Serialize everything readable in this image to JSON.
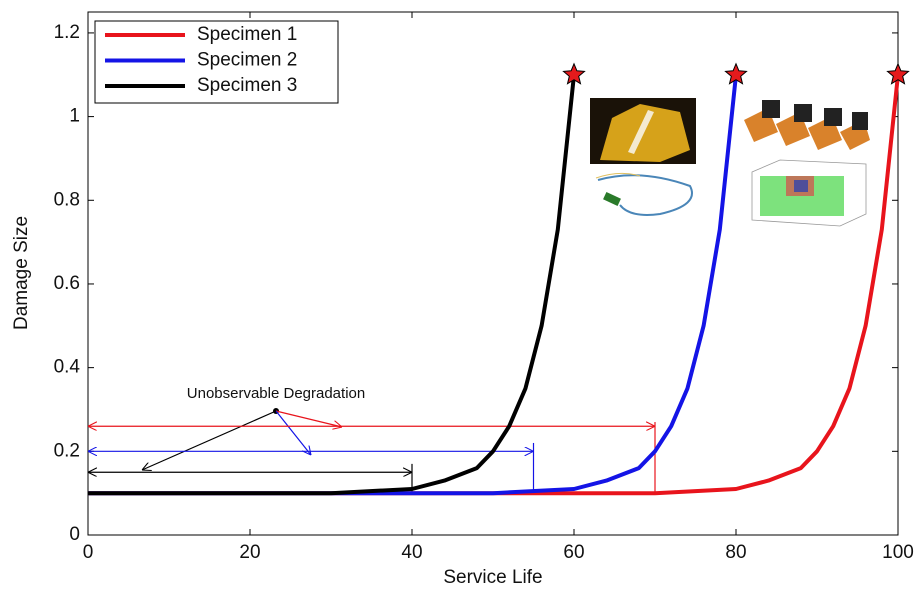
{
  "chart_data": {
    "type": "line",
    "xlabel": "Service Life",
    "ylabel": "Damage Size",
    "xlim": [
      0,
      100
    ],
    "ylim": [
      0,
      1.25
    ],
    "xticks": [
      0,
      20,
      40,
      60,
      80,
      100
    ],
    "yticks": [
      0,
      0.2,
      0.4,
      0.6,
      0.8,
      1,
      1.2
    ],
    "end_marker": "star",
    "marker_color": "#e41a1c",
    "series": [
      {
        "name": "Specimen 1",
        "color": "#e8141c",
        "x": [
          0,
          70,
          80,
          84,
          88,
          90,
          92,
          94,
          96,
          98,
          100
        ],
        "values": [
          0.1,
          0.1,
          0.11,
          0.13,
          0.16,
          0.2,
          0.26,
          0.35,
          0.5,
          0.73,
          1.1
        ]
      },
      {
        "name": "Specimen 2",
        "color": "#1414e6",
        "x": [
          0,
          50,
          60,
          64,
          68,
          70,
          72,
          74,
          76,
          78,
          80
        ],
        "values": [
          0.1,
          0.1,
          0.11,
          0.13,
          0.16,
          0.2,
          0.26,
          0.35,
          0.5,
          0.73,
          1.1
        ]
      },
      {
        "name": "Specimen 3",
        "color": "#000000",
        "x": [
          0,
          30,
          40,
          44,
          48,
          50,
          52,
          54,
          56,
          58,
          60
        ],
        "values": [
          0.1,
          0.1,
          0.11,
          0.13,
          0.16,
          0.2,
          0.26,
          0.35,
          0.5,
          0.73,
          1.1
        ]
      }
    ],
    "annotation": "Unobservable Degradation",
    "intervals": [
      {
        "color": "#e8141c",
        "start": 0,
        "end": 70,
        "y": 0.26,
        "top": 0.27,
        "bottom": 0.1
      },
      {
        "color": "#1414e6",
        "start": 0,
        "end": 55,
        "y": 0.2,
        "top": 0.22,
        "bottom": 0.1
      },
      {
        "color": "#000000",
        "start": 0,
        "end": 40,
        "y": 0.15,
        "top": 0.17,
        "bottom": 0.1
      }
    ]
  }
}
